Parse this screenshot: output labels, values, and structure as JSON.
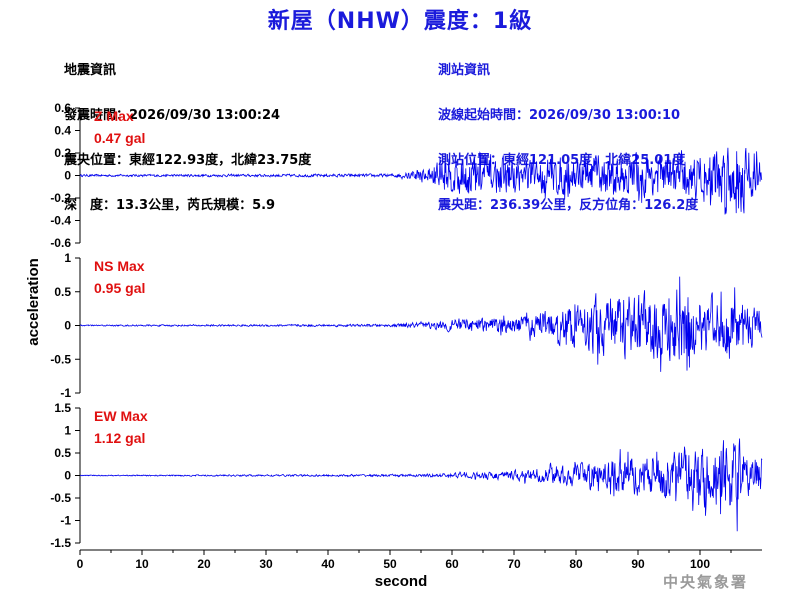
{
  "header": {
    "title": "新屋（NHW）震度：1級"
  },
  "earthquake_info": {
    "heading": "地震資訊",
    "origin_time": "發震時間：2026/09/30 13:00:24",
    "epicenter": "震央位置：東經122.93度，北緯23.75度",
    "depth_magnitude": "深　度：13.3公里，芮氏規模：5.9"
  },
  "station_info": {
    "heading": "測站資訊",
    "wave_start": "波線起始時間：2026/09/30 13:00:10",
    "station_location": "測站位置：東經121.05度，北緯25.01度",
    "distance": "震央距：236.39公里，反方位角：126.2度"
  },
  "footer": {
    "agency": "中央氣象署"
  },
  "colors": {
    "title": "#1a1adb",
    "trace": "#0000ee",
    "max_label": "#e01010",
    "axis": "#000000"
  },
  "chart_data": {
    "type": "line",
    "xlabel": "second",
    "ylabel": "acceleration",
    "xlim": [
      0,
      110
    ],
    "x_ticks": [
      "0",
      "10",
      "20",
      "30",
      "40",
      "50",
      "60",
      "70",
      "80",
      "90",
      "100"
    ],
    "grid": false,
    "panels": [
      {
        "component": "Z",
        "max_label": "Z Max",
        "max_value": "0.47 gal",
        "ylim": [
          -0.6,
          0.6
        ],
        "y_ticks": [
          "0.6",
          "0.4",
          "0.2",
          "0",
          "-0.2",
          "-0.4",
          "-0.6"
        ],
        "y_tick_values": [
          0.6,
          0.4,
          0.2,
          0,
          -0.2,
          -0.4,
          -0.6
        ],
        "envelope": {
          "x": [
            0,
            50,
            52,
            55,
            58,
            62,
            70,
            80,
            90,
            100,
            104,
            106,
            108,
            110
          ],
          "amp": [
            0.01,
            0.015,
            0.03,
            0.08,
            0.2,
            0.28,
            0.22,
            0.24,
            0.26,
            0.3,
            0.42,
            0.47,
            0.35,
            0.15
          ]
        },
        "onset": 52
      },
      {
        "component": "NS",
        "max_label": "NS Max",
        "max_value": "0.95 gal",
        "ylim": [
          -1,
          1
        ],
        "y_ticks": [
          "1",
          "0.5",
          "0",
          "-0.5",
          "-1"
        ],
        "y_tick_values": [
          1,
          0.5,
          0,
          -0.5,
          -1
        ],
        "envelope": {
          "x": [
            0,
            50,
            56,
            60,
            70,
            78,
            82,
            86,
            92,
            97,
            100,
            104,
            108,
            110
          ],
          "amp": [
            0.01,
            0.02,
            0.06,
            0.12,
            0.18,
            0.35,
            0.55,
            0.65,
            0.6,
            0.95,
            0.55,
            0.6,
            0.45,
            0.3
          ]
        },
        "onset": 55
      },
      {
        "component": "EW",
        "max_label": "EW Max",
        "max_value": "1.12 gal",
        "ylim": [
          -1.5,
          1.5
        ],
        "y_ticks": [
          "1.5",
          "1",
          "0.5",
          "0",
          "-0.5",
          "-1",
          "-1.5"
        ],
        "y_tick_values": [
          1.5,
          1,
          0.5,
          0,
          -0.5,
          -1,
          -1.5
        ],
        "envelope": {
          "x": [
            0,
            55,
            62,
            70,
            78,
            84,
            88,
            92,
            96,
            100,
            104,
            106,
            108,
            110
          ],
          "amp": [
            0.01,
            0.03,
            0.08,
            0.15,
            0.28,
            0.45,
            0.6,
            0.55,
            0.8,
            0.9,
            1.0,
            1.12,
            0.7,
            0.5
          ]
        },
        "onset": 58
      }
    ]
  }
}
